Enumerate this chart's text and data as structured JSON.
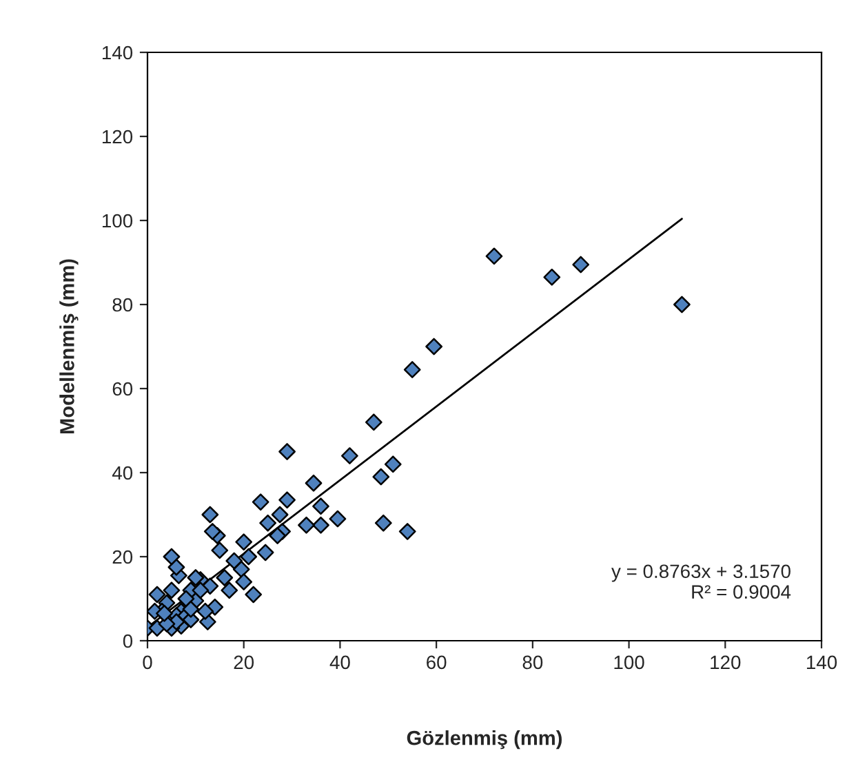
{
  "chart_data": {
    "type": "scatter",
    "xlabel": "Gözlenmiş (mm)",
    "ylabel": "Modellenmiş (mm)",
    "xlim": [
      0,
      140
    ],
    "ylim": [
      0,
      140
    ],
    "xticks": [
      0,
      20,
      40,
      60,
      80,
      100,
      120,
      140
    ],
    "yticks": [
      0,
      20,
      40,
      60,
      80,
      100,
      120,
      140
    ],
    "grid": false,
    "series": [
      {
        "color": "#4f81bd",
        "marker": "diamond",
        "x": [
          72,
          84,
          90,
          111,
          59.5,
          55,
          47,
          51,
          48.5,
          49,
          54,
          42,
          39.5,
          36,
          34.5,
          36,
          33,
          29,
          29,
          28,
          27,
          27.5,
          25,
          23.5,
          24.5,
          22,
          20,
          21,
          19.5,
          20,
          18,
          17,
          16,
          15,
          14.5,
          13.5,
          13,
          14,
          13,
          12.5,
          12,
          11,
          10,
          10,
          9,
          8,
          7,
          6.5,
          6,
          5,
          5,
          4,
          3,
          2,
          0,
          6,
          7,
          8,
          9,
          5,
          2,
          1.5,
          11,
          9,
          6,
          4,
          3.5
        ],
        "values": [
          91.5,
          86.5,
          89.5,
          80,
          70,
          64.5,
          52,
          42,
          39,
          28,
          26,
          44,
          29,
          32,
          37.5,
          27.5,
          27.5,
          45,
          33.5,
          26,
          25,
          30,
          28,
          33,
          21,
          11,
          23.5,
          20,
          17,
          14,
          19,
          12,
          15,
          21.5,
          25,
          26,
          30,
          8,
          13,
          4.5,
          7,
          14.5,
          15,
          9.5,
          12,
          10,
          7,
          15.5,
          17.5,
          20,
          12,
          9,
          7,
          11,
          3,
          6,
          3.5,
          6,
          5,
          3,
          3,
          7,
          12,
          7.5,
          4.5,
          4,
          6.5
        ]
      },
      {
        "type": "line",
        "color": "#000000",
        "marker": "none",
        "x": [
          0,
          111
        ],
        "values": [
          3.2,
          100.4
        ]
      }
    ],
    "annotations": [
      {
        "text": "y = 0.8763x + 3.1570\nR² = 0.9004"
      }
    ]
  }
}
